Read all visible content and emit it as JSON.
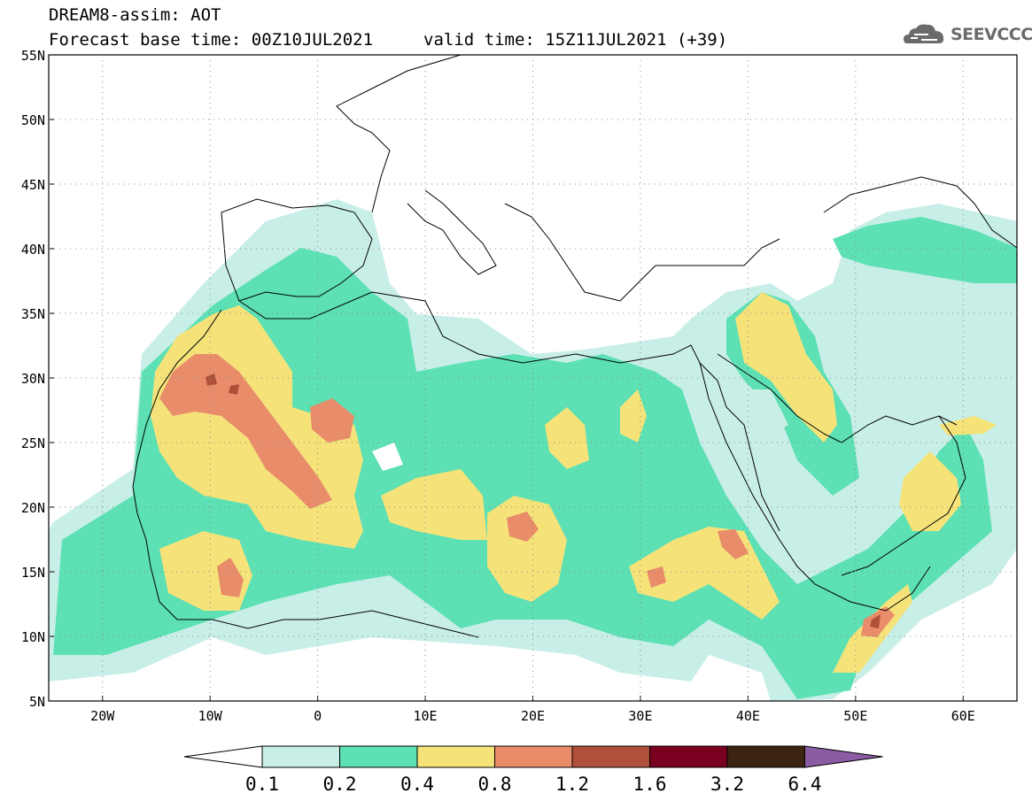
{
  "header": {
    "line1": "DREAM8-assim: AOT",
    "line2": "Forecast base time: 00Z10JUL2021",
    "valid": "valid time: 15Z11JUL2021 (+39)"
  },
  "logo": {
    "text": "SEEVCCC",
    "icon": "cloud-icon"
  },
  "map": {
    "lat_labels": [
      "55N",
      "50N",
      "45N",
      "40N",
      "35N",
      "30N",
      "25N",
      "20N",
      "15N",
      "10N",
      "5N"
    ],
    "lon_labels": [
      "20W",
      "10W",
      "0",
      "10E",
      "20E",
      "30E",
      "40E",
      "50E",
      "60E"
    ],
    "lon_range": [
      -25,
      65
    ],
    "lat_range": [
      5,
      55
    ],
    "field": "Aerosol optical thickness"
  },
  "colorbar": {
    "levels": [
      "0.1",
      "0.2",
      "0.4",
      "0.8",
      "1.2",
      "1.6",
      "3.2",
      "6.4"
    ],
    "colors": [
      "#ffffff",
      "#c8eee8",
      "#5ce0b4",
      "#f5e37a",
      "#e88c6a",
      "#b0503a",
      "#7a0020",
      "#3b2410",
      "#8b5ba3"
    ]
  }
}
